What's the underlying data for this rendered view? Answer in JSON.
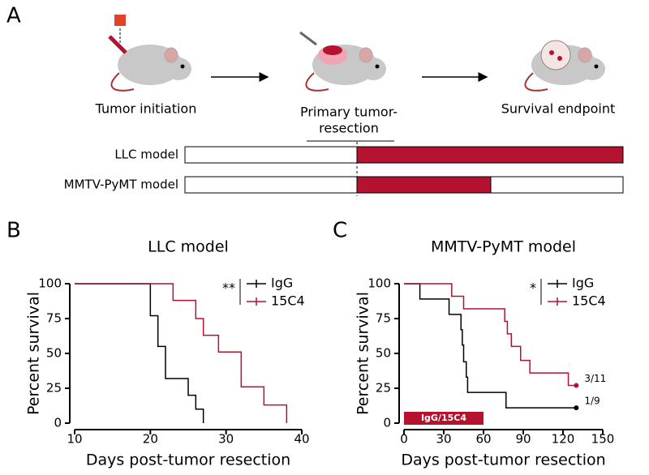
{
  "panel_labels": [
    "A",
    "B",
    "C"
  ],
  "diagram": {
    "steps": [
      "Tumor initiation",
      "Primary tumor-",
      "resection",
      "Survival endpoint"
    ],
    "models": [
      "LLC model",
      "MMTV-PyMT model"
    ]
  },
  "chart_data": [
    {
      "type": "line",
      "step": true,
      "title": "LLC model",
      "xlabel": "Days post-tumor resection",
      "ylabel": "Percent survival",
      "xlim": [
        10,
        40
      ],
      "xticks": [
        10,
        20,
        30,
        40
      ],
      "ylim": [
        0,
        100
      ],
      "yticks": [
        0,
        25,
        50,
        75,
        100
      ],
      "significance": "**",
      "series": [
        {
          "name": "IgG",
          "color": "#000000",
          "x": [
            10,
            20,
            21,
            22,
            25,
            26,
            27
          ],
          "values": [
            100,
            77,
            55,
            32,
            20,
            10,
            0
          ]
        },
        {
          "name": "15C4",
          "color": "#b5122f",
          "x": [
            10,
            23,
            26,
            27,
            29,
            32,
            35,
            38
          ],
          "values": [
            100,
            88,
            75,
            63,
            51,
            26,
            13,
            0
          ]
        }
      ]
    },
    {
      "type": "line",
      "step": true,
      "title": "MMTV-PyMT model",
      "xlabel": "Days post-tumor resection",
      "ylabel": "Percent survival",
      "xlim": [
        0,
        150
      ],
      "xticks": [
        0,
        30,
        60,
        90,
        120,
        150
      ],
      "ylim": [
        0,
        100
      ],
      "yticks": [
        0,
        25,
        50,
        75,
        100
      ],
      "significance": "*",
      "treatment": {
        "label": "IgG/15C4",
        "x": [
          0,
          60
        ],
        "color": "#b5122f"
      },
      "series": [
        {
          "name": "IgG",
          "color": "#000000",
          "x": [
            0,
            12,
            34,
            43,
            44,
            45,
            47,
            48,
            77,
            130
          ],
          "values": [
            100,
            89,
            78,
            67,
            56,
            44,
            33,
            22,
            11,
            11
          ],
          "end_label": "1/9"
        },
        {
          "name": "15C4",
          "color": "#b5122f",
          "x": [
            0,
            36,
            45,
            76,
            78,
            81,
            88,
            95,
            124,
            130
          ],
          "values": [
            100,
            91,
            82,
            73,
            64,
            55,
            45,
            36,
            27,
            27
          ],
          "end_label": "3/11"
        }
      ]
    }
  ]
}
